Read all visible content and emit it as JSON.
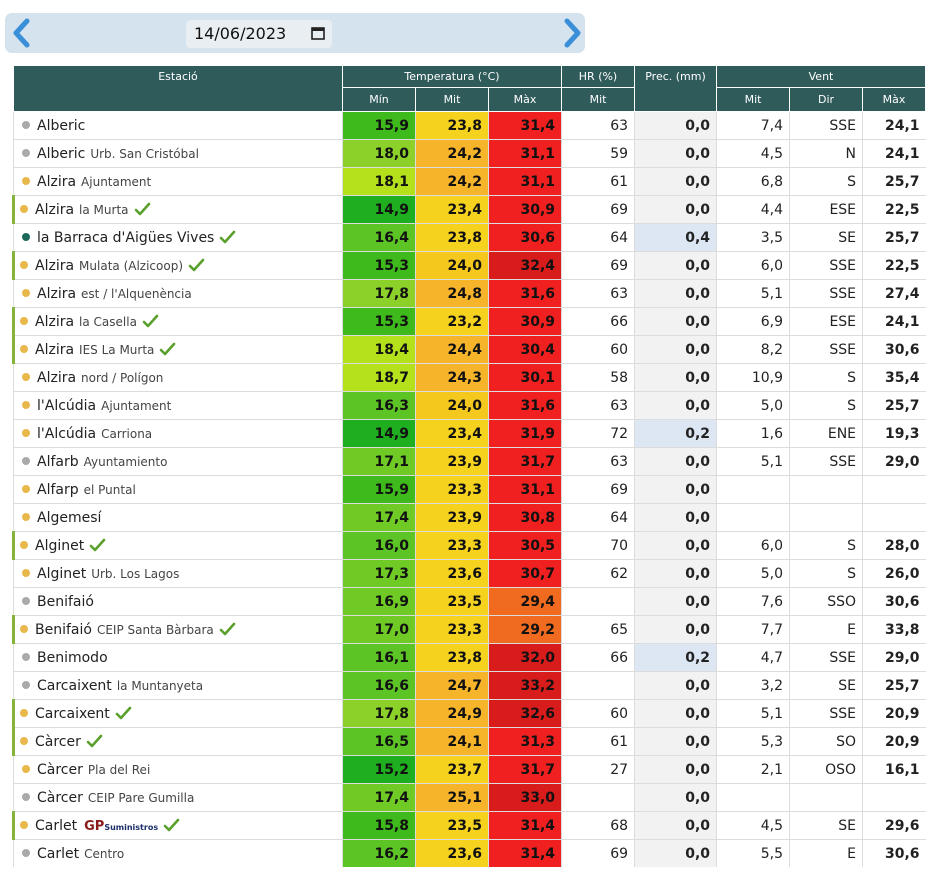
{
  "date_picker": {
    "value": "14/06/2023",
    "prev_icon": "chevron-left-icon",
    "next_icon": "chevron-right-icon",
    "calendar_icon": "calendar-icon"
  },
  "colors": {
    "header_bg": "#2f5b5a",
    "date_bar_bg": "#d4e3ee",
    "arrow": "#3a8fd8",
    "check": "#5aa02c"
  },
  "headers": {
    "station": "Estació",
    "temperature": "Temperatura (°C)",
    "humidity": "HR (%)",
    "precipitation": "Prec. (mm)",
    "wind": "Vent",
    "t_min": "Mín",
    "t_mit": "Mit",
    "t_max": "Màx",
    "hr_mit": "Mit",
    "w_mit": "Mit",
    "w_dir": "Dir",
    "w_max": "Màx"
  },
  "rows": [
    {
      "name": "Alberic",
      "sub": "",
      "dot": "#aaaaaa",
      "check": false,
      "marked": false,
      "tmin": "15,9",
      "tmit": "23,8",
      "tmax": "31,4",
      "hr": "63",
      "prec": "0,0",
      "vm": "7,4",
      "dir": "SSE",
      "vx": "24,1",
      "c1": "#3fba1c",
      "c2": "#f5d21e",
      "c3": "#f02020"
    },
    {
      "name": "Alberic",
      "sub": "Urb. San Cristóbal",
      "dot": "#aaaaaa",
      "check": false,
      "marked": false,
      "tmin": "18,0",
      "tmit": "24,2",
      "tmax": "31,1",
      "hr": "59",
      "prec": "0,0",
      "vm": "4,5",
      "dir": "N",
      "vx": "24,1",
      "c1": "#8bd12a",
      "c2": "#f5b42a",
      "c3": "#f02020"
    },
    {
      "name": "Alzira",
      "sub": "Ajuntament",
      "dot": "#e8b84a",
      "check": false,
      "marked": false,
      "tmin": "18,1",
      "tmit": "24,2",
      "tmax": "31,1",
      "hr": "61",
      "prec": "0,0",
      "vm": "6,8",
      "dir": "S",
      "vx": "25,7",
      "c1": "#b5e01c",
      "c2": "#f5b42a",
      "c3": "#f02020"
    },
    {
      "name": "Alzira",
      "sub": "la Murta",
      "dot": "#e8b84a",
      "check": true,
      "marked": true,
      "tmin": "14,9",
      "tmit": "23,4",
      "tmax": "30,9",
      "hr": "69",
      "prec": "0,0",
      "vm": "4,4",
      "dir": "ESE",
      "vx": "22,5",
      "c1": "#1fae1f",
      "c2": "#f5d21e",
      "c3": "#f02020"
    },
    {
      "name": "la Barraca d'Aigües Vives",
      "sub": "",
      "dot": "#1e6a5a",
      "check": true,
      "marked": false,
      "tmin": "16,4",
      "tmit": "23,8",
      "tmax": "30,6",
      "hr": "64",
      "prec": "0,4",
      "vm": "3,5",
      "dir": "SE",
      "vx": "25,7",
      "c1": "#5cc424",
      "c2": "#f5d21e",
      "c3": "#f02020"
    },
    {
      "name": "Alzira",
      "sub": "Mulata (Alzicoop)",
      "dot": "#e8b84a",
      "check": true,
      "marked": true,
      "tmin": "15,3",
      "tmit": "24,0",
      "tmax": "32,4",
      "hr": "69",
      "prec": "0,0",
      "vm": "6,0",
      "dir": "SSE",
      "vx": "22,5",
      "c1": "#3fba1c",
      "c2": "#f5c81e",
      "c3": "#d81c1c"
    },
    {
      "name": "Alzira",
      "sub": "est / l'Alquenència",
      "dot": "#e8b84a",
      "check": false,
      "marked": false,
      "tmin": "17,8",
      "tmit": "24,8",
      "tmax": "31,6",
      "hr": "63",
      "prec": "0,0",
      "vm": "5,1",
      "dir": "SSE",
      "vx": "27,4",
      "c1": "#8bd12a",
      "c2": "#f5b42a",
      "c3": "#f02020"
    },
    {
      "name": "Alzira",
      "sub": "la Casella",
      "dot": "#e8b84a",
      "check": true,
      "marked": true,
      "tmin": "15,3",
      "tmit": "23,2",
      "tmax": "30,9",
      "hr": "66",
      "prec": "0,0",
      "vm": "6,9",
      "dir": "ESE",
      "vx": "24,1",
      "c1": "#3fba1c",
      "c2": "#f5d21e",
      "c3": "#f02020"
    },
    {
      "name": "Alzira",
      "sub": "IES La Murta",
      "dot": "#e8b84a",
      "check": true,
      "marked": true,
      "tmin": "18,4",
      "tmit": "24,4",
      "tmax": "30,4",
      "hr": "60",
      "prec": "0,0",
      "vm": "8,2",
      "dir": "SSE",
      "vx": "30,6",
      "c1": "#b5e01c",
      "c2": "#f5b42a",
      "c3": "#f02020"
    },
    {
      "name": "Alzira",
      "sub": "nord / Polígon",
      "dot": "#e8b84a",
      "check": false,
      "marked": false,
      "tmin": "18,7",
      "tmit": "24,3",
      "tmax": "30,1",
      "hr": "58",
      "prec": "0,0",
      "vm": "10,9",
      "dir": "S",
      "vx": "35,4",
      "c1": "#b5e01c",
      "c2": "#f5b42a",
      "c3": "#f02020"
    },
    {
      "name": "l'Alcúdia",
      "sub": "Ajuntament",
      "dot": "#e8b84a",
      "check": false,
      "marked": false,
      "tmin": "16,3",
      "tmit": "24,0",
      "tmax": "31,6",
      "hr": "63",
      "prec": "0,0",
      "vm": "5,0",
      "dir": "S",
      "vx": "25,7",
      "c1": "#5cc424",
      "c2": "#f5c81e",
      "c3": "#f02020"
    },
    {
      "name": "l'Alcúdia",
      "sub": "Carriona",
      "dot": "#e8b84a",
      "check": false,
      "marked": false,
      "tmin": "14,9",
      "tmit": "23,4",
      "tmax": "31,9",
      "hr": "72",
      "prec": "0,2",
      "vm": "1,6",
      "dir": "ENE",
      "vx": "19,3",
      "c1": "#1fae1f",
      "c2": "#f5d21e",
      "c3": "#f02020"
    },
    {
      "name": "Alfarb",
      "sub": "Ayuntamiento",
      "dot": "#aaaaaa",
      "check": false,
      "marked": false,
      "tmin": "17,1",
      "tmit": "23,9",
      "tmax": "31,7",
      "hr": "63",
      "prec": "0,0",
      "vm": "5,1",
      "dir": "SSE",
      "vx": "29,0",
      "c1": "#6fca26",
      "c2": "#f5d21e",
      "c3": "#f02020"
    },
    {
      "name": "Alfarp",
      "sub": "el Puntal",
      "dot": "#e8b84a",
      "check": false,
      "marked": false,
      "tmin": "15,9",
      "tmit": "23,3",
      "tmax": "31,1",
      "hr": "69",
      "prec": "0,0",
      "vm": "",
      "dir": "",
      "vx": "",
      "c1": "#3fba1c",
      "c2": "#f5d21e",
      "c3": "#f02020"
    },
    {
      "name": "Algemesí",
      "sub": "",
      "dot": "#e8b84a",
      "check": false,
      "marked": false,
      "tmin": "17,4",
      "tmit": "23,9",
      "tmax": "30,8",
      "hr": "64",
      "prec": "0,0",
      "vm": "",
      "dir": "",
      "vx": "",
      "c1": "#6fca26",
      "c2": "#f5d21e",
      "c3": "#f02020"
    },
    {
      "name": "Alginet",
      "sub": "",
      "dot": "#e8b84a",
      "check": true,
      "marked": true,
      "tmin": "16,0",
      "tmit": "23,3",
      "tmax": "30,5",
      "hr": "70",
      "prec": "0,0",
      "vm": "6,0",
      "dir": "S",
      "vx": "28,0",
      "c1": "#5cc424",
      "c2": "#f5d21e",
      "c3": "#f02020"
    },
    {
      "name": "Alginet",
      "sub": "Urb. Los Lagos",
      "dot": "#e8b84a",
      "check": false,
      "marked": false,
      "tmin": "17,3",
      "tmit": "23,6",
      "tmax": "30,7",
      "hr": "62",
      "prec": "0,0",
      "vm": "5,0",
      "dir": "S",
      "vx": "26,0",
      "c1": "#6fca26",
      "c2": "#f5d21e",
      "c3": "#f02020"
    },
    {
      "name": "Benifaió",
      "sub": "",
      "dot": "#aaaaaa",
      "check": false,
      "marked": false,
      "tmin": "16,9",
      "tmit": "23,5",
      "tmax": "29,4",
      "hr": "",
      "prec": "0,0",
      "vm": "7,6",
      "dir": "SSO",
      "vx": "30,6",
      "c1": "#6fca26",
      "c2": "#f5d21e",
      "c3": "#f06a20"
    },
    {
      "name": "Benifaió",
      "sub": "CEIP Santa Bàrbara",
      "dot": "#e8b84a",
      "check": true,
      "marked": true,
      "tmin": "17,0",
      "tmit": "23,3",
      "tmax": "29,2",
      "hr": "65",
      "prec": "0,0",
      "vm": "7,7",
      "dir": "E",
      "vx": "33,8",
      "c1": "#6fca26",
      "c2": "#f5d21e",
      "c3": "#f06a20"
    },
    {
      "name": "Benimodo",
      "sub": "",
      "dot": "#aaaaaa",
      "check": false,
      "marked": false,
      "tmin": "16,1",
      "tmit": "23,8",
      "tmax": "32,0",
      "hr": "66",
      "prec": "0,2",
      "vm": "4,7",
      "dir": "SSE",
      "vx": "29,0",
      "c1": "#5cc424",
      "c2": "#f5d21e",
      "c3": "#d81c1c"
    },
    {
      "name": "Carcaixent",
      "sub": "la Muntanyeta",
      "dot": "#aaaaaa",
      "check": false,
      "marked": false,
      "tmin": "16,6",
      "tmit": "24,7",
      "tmax": "33,2",
      "hr": "",
      "prec": "0,0",
      "vm": "3,2",
      "dir": "SE",
      "vx": "25,7",
      "c1": "#5cc424",
      "c2": "#f5b42a",
      "c3": "#d81c1c"
    },
    {
      "name": "Carcaixent",
      "sub": "",
      "dot": "#e8b84a",
      "check": true,
      "marked": true,
      "tmin": "17,8",
      "tmit": "24,9",
      "tmax": "32,6",
      "hr": "60",
      "prec": "0,0",
      "vm": "5,1",
      "dir": "SSE",
      "vx": "20,9",
      "c1": "#8bd12a",
      "c2": "#f5b42a",
      "c3": "#d81c1c"
    },
    {
      "name": "Càrcer",
      "sub": "",
      "dot": "#e8b84a",
      "check": true,
      "marked": true,
      "tmin": "16,5",
      "tmit": "24,1",
      "tmax": "31,3",
      "hr": "61",
      "prec": "0,0",
      "vm": "5,3",
      "dir": "SO",
      "vx": "20,9",
      "c1": "#5cc424",
      "c2": "#f5b42a",
      "c3": "#f02020"
    },
    {
      "name": "Càrcer",
      "sub": "Pla del Rei",
      "dot": "#e8b84a",
      "check": false,
      "marked": false,
      "tmin": "15,2",
      "tmit": "23,7",
      "tmax": "31,7",
      "hr": "27",
      "prec": "0,0",
      "vm": "2,1",
      "dir": "OSO",
      "vx": "16,1",
      "c1": "#1fae1f",
      "c2": "#f5d21e",
      "c3": "#f02020"
    },
    {
      "name": "Càrcer",
      "sub": "CEIP Pare Gumilla",
      "dot": "#aaaaaa",
      "check": false,
      "marked": false,
      "tmin": "17,4",
      "tmit": "25,1",
      "tmax": "33,0",
      "hr": "",
      "prec": "0,0",
      "vm": "",
      "dir": "",
      "vx": "",
      "c1": "#6fca26",
      "c2": "#f5b42a",
      "c3": "#d81c1c"
    },
    {
      "name": "Carlet",
      "sub": "",
      "dot": "#e8b84a",
      "check": true,
      "marked": true,
      "gp": true,
      "tmin": "15,8",
      "tmit": "23,5",
      "tmax": "31,4",
      "hr": "68",
      "prec": "0,0",
      "vm": "4,5",
      "dir": "SE",
      "vx": "29,6",
      "c1": "#3fba1c",
      "c2": "#f5d21e",
      "c3": "#f02020"
    },
    {
      "name": "Carlet",
      "sub": "Centro",
      "dot": "#aaaaaa",
      "check": false,
      "marked": false,
      "tmin": "16,2",
      "tmit": "23,6",
      "tmax": "31,4",
      "hr": "69",
      "prec": "0,0",
      "vm": "5,5",
      "dir": "E",
      "vx": "30,6",
      "c1": "#5cc424",
      "c2": "#f5d21e",
      "c3": "#f02020"
    }
  ],
  "gp_logo": {
    "big": "GP",
    "small": "Suministros"
  }
}
